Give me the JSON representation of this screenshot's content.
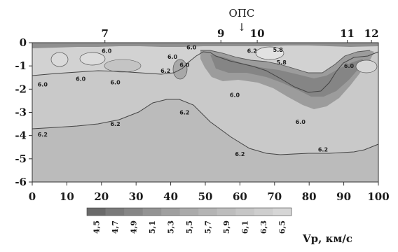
{
  "chart_data": {
    "type": "heatmap",
    "title": "",
    "xlabel": "",
    "ylabel": "",
    "xlim": [
      0,
      100
    ],
    "ylim": [
      -6,
      0
    ],
    "x_ticks": [
      "0",
      "10",
      "20",
      "30",
      "40",
      "50",
      "60",
      "70",
      "80",
      "90",
      "100"
    ],
    "y_ticks": [
      "0",
      "-1",
      "-2",
      "-3",
      "-4",
      "-5",
      "-6"
    ],
    "stations": [
      {
        "label": "7",
        "x": 21
      },
      {
        "label": "9",
        "x": 54.5
      },
      {
        "label": "10",
        "x": 65
      },
      {
        "label": "11",
        "x": 91
      },
      {
        "label": "12",
        "x": 98
      }
    ],
    "ops": {
      "label": "ОПС",
      "arrow": "↓",
      "x": 60.5
    },
    "contours": [
      {
        "label": "6.2",
        "x": 3,
        "y": -3.95
      },
      {
        "label": "6.2",
        "x": 24,
        "y": -3.5
      },
      {
        "label": "6.2",
        "x": 44,
        "y": -3.0
      },
      {
        "label": "6.2",
        "x": 60,
        "y": -4.8
      },
      {
        "label": "6.2",
        "x": 84,
        "y": -4.6
      },
      {
        "label": "6.0",
        "x": 3,
        "y": -1.8
      },
      {
        "label": "6.0",
        "x": 14,
        "y": -1.55
      },
      {
        "label": "6.0",
        "x": 24,
        "y": -1.7
      },
      {
        "label": "6.0",
        "x": 21.5,
        "y": -0.35
      },
      {
        "label": "6.0",
        "x": 40.5,
        "y": -0.6
      },
      {
        "label": "6.0",
        "x": 44,
        "y": -0.95
      },
      {
        "label": "6.0",
        "x": 46,
        "y": -0.2
      },
      {
        "label": "6.0",
        "x": 58.5,
        "y": -2.25
      },
      {
        "label": "6.0",
        "x": 77.5,
        "y": -3.4
      },
      {
        "label": "6.2",
        "x": 38.5,
        "y": -1.2
      },
      {
        "label": "6.2",
        "x": 63.5,
        "y": -0.35
      },
      {
        "label": "5.8",
        "x": 71,
        "y": -0.3
      },
      {
        "label": "5.8",
        "x": 72,
        "y": -0.85
      },
      {
        "label": "6.0",
        "x": 91.5,
        "y": -1.0
      }
    ],
    "colorbar": {
      "label": "Vp, км/с",
      "ticks": [
        "4,5",
        "4,7",
        "4,9",
        "5,1",
        "5,3",
        "5,5",
        "5,7",
        "5,9",
        "6,1",
        "6,3",
        "6,5"
      ],
      "colors": [
        "#6a6a6a",
        "#7a7a7a",
        "#868686",
        "#939393",
        "#9f9f9f",
        "#aaaaaa",
        "#b4b4b4",
        "#bdbdbd",
        "#c6c6c6",
        "#cecece",
        "#d6d6d6"
      ]
    }
  }
}
